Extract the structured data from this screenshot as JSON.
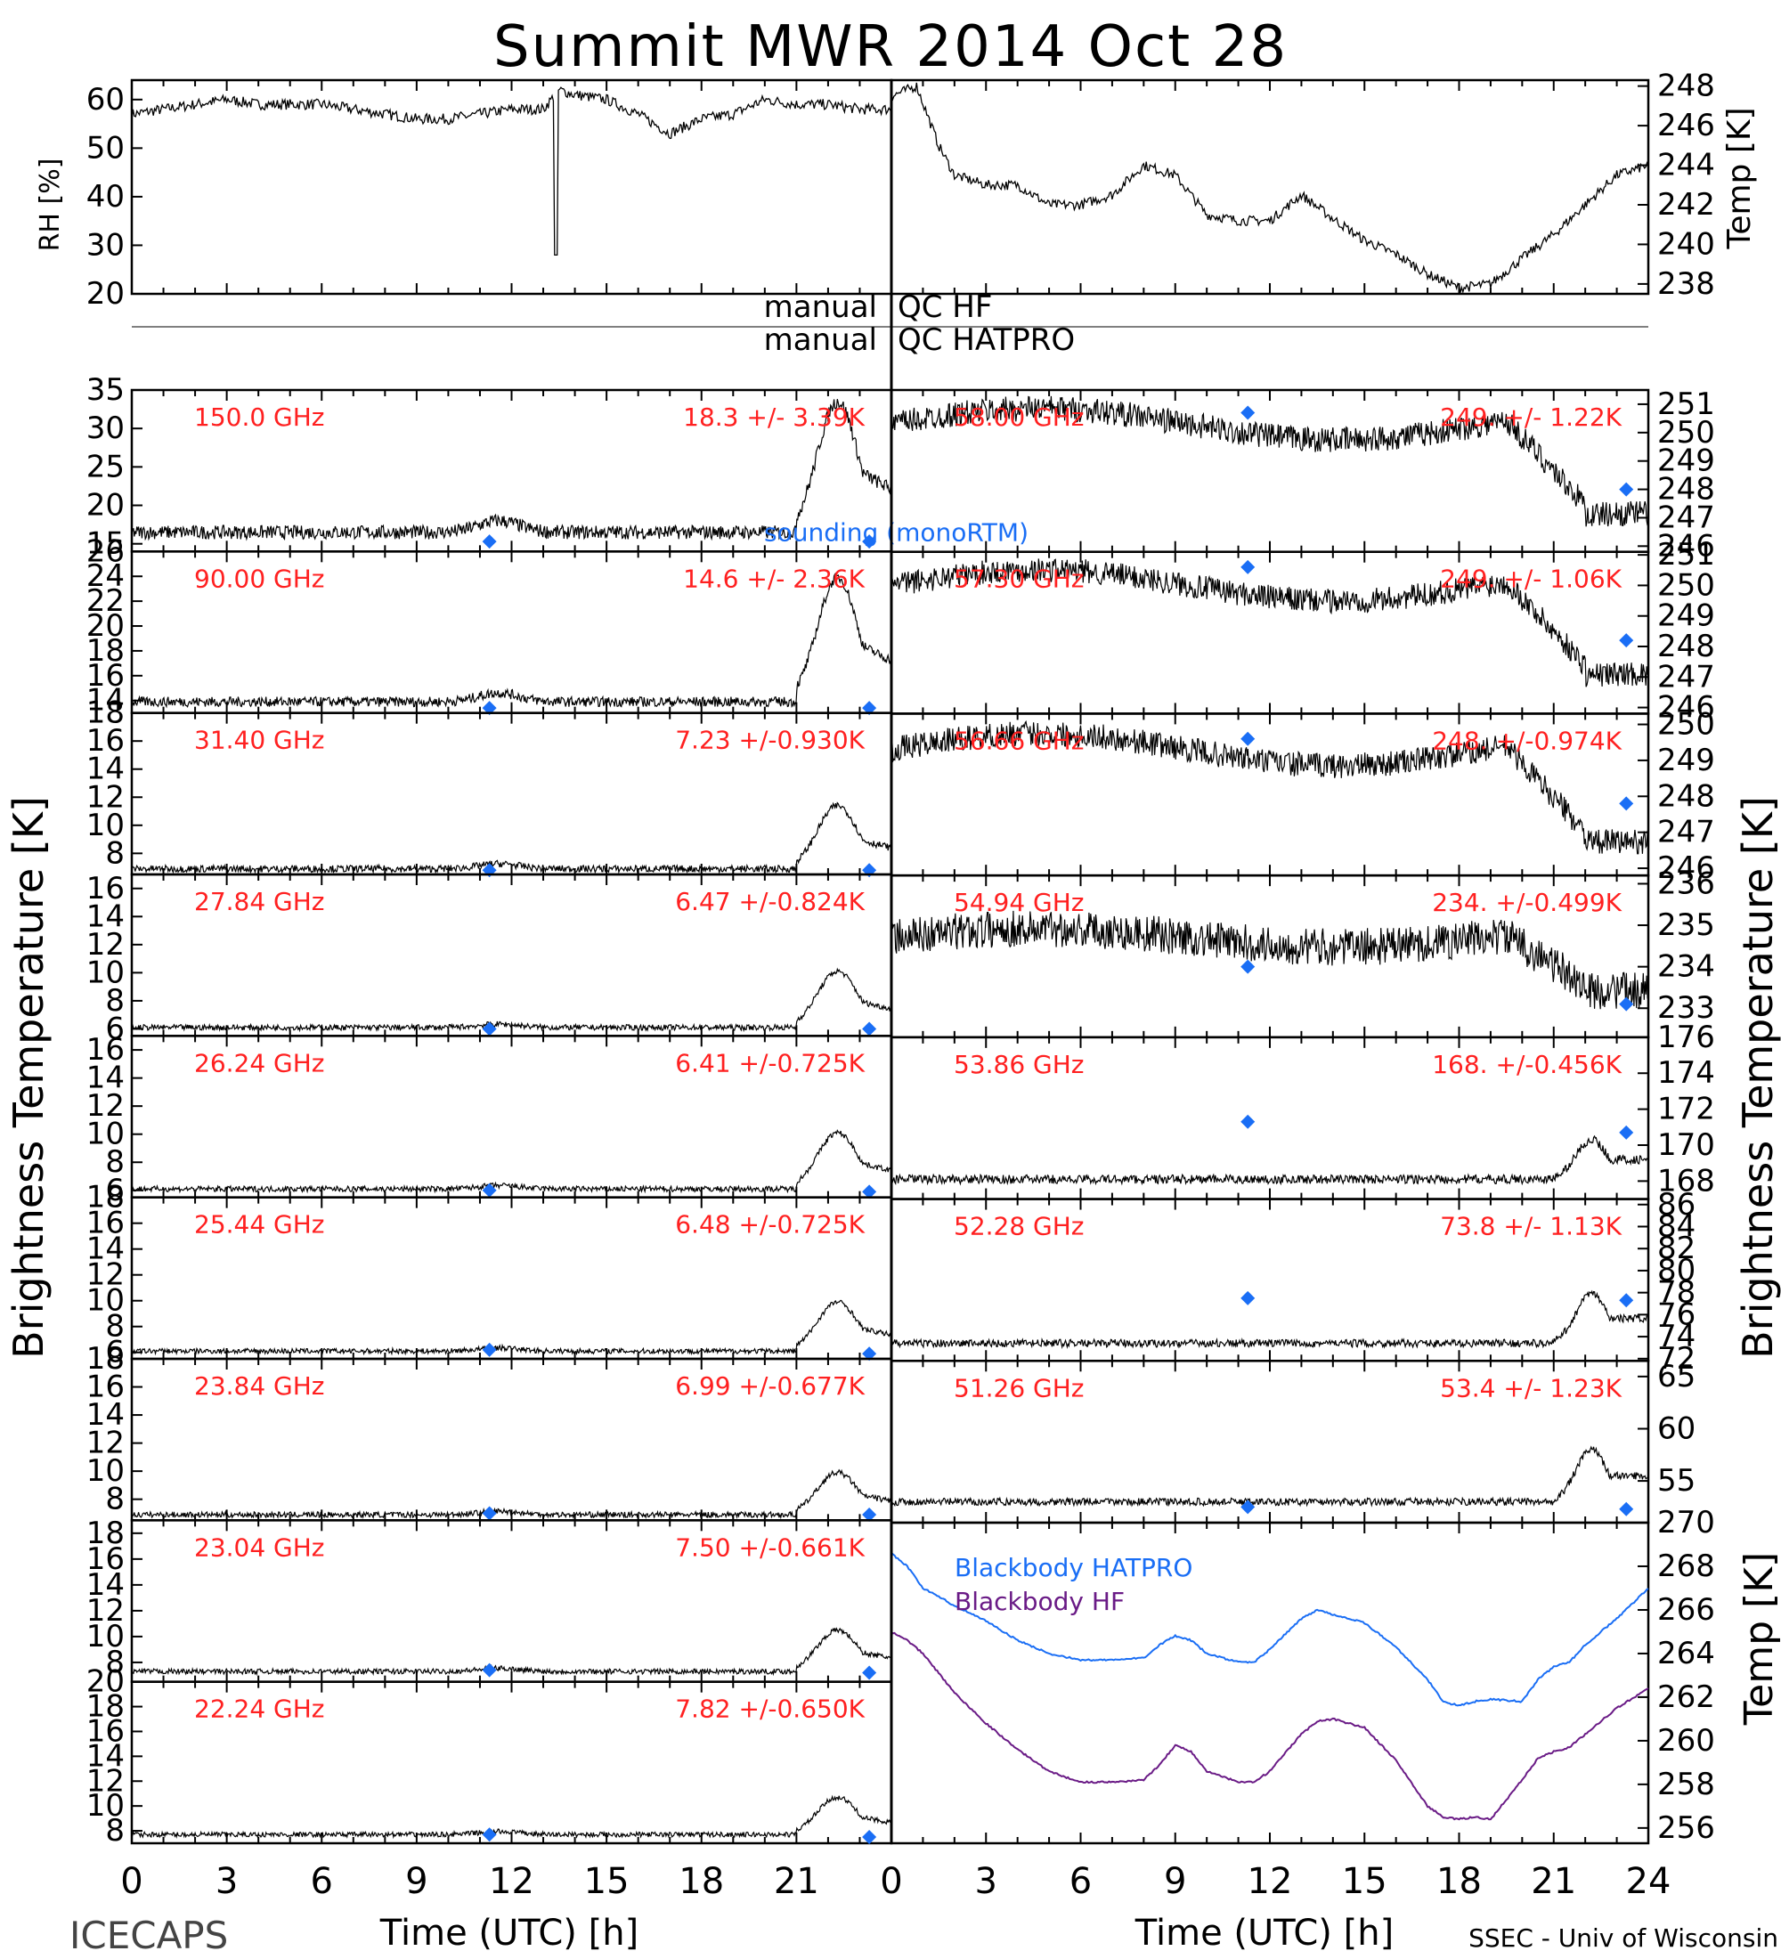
{
  "title": "Summit MWR 2014 Oct 28",
  "footer": {
    "left": "ICECAPS",
    "right": "SSEC - Univ of Wisconsin"
  },
  "colors": {
    "channel_label": "#ff2020",
    "sounding": "#1a6ef5",
    "hatpro": "#1a6ef5",
    "hf": "#6a1b86",
    "data": "#000000"
  },
  "axes": {
    "time_label": "Time (UTC) [h]",
    "time_ticks": [
      "0",
      "3",
      "6",
      "9",
      "12",
      "15",
      "18",
      "21",
      "0",
      "3",
      "6",
      "9",
      "12",
      "15",
      "18",
      "21",
      "24"
    ],
    "bt_label_left": "Brightness Temperature [K]",
    "bt_label_right": "Brightness Temperature [K]",
    "rh_label": "RH [%]",
    "temp_label_top": "Temp [K]",
    "temp_label_bottom": "Temp [K]"
  },
  "qc": {
    "hf": {
      "left": "manual",
      "right": "QC HF"
    },
    "hatpro": {
      "left": "manual",
      "right": "QC HATPRO"
    }
  },
  "legend": {
    "sounding": "sounding (monoRTM)",
    "hatpro": "Blackbody HATPRO",
    "hf": "Blackbody HF"
  },
  "chart_data": {
    "type": "line",
    "met": {
      "rh": {
        "x_range": [
          0,
          24
        ],
        "ylim": [
          20,
          64
        ],
        "ticks": [
          20,
          30,
          40,
          50,
          60
        ],
        "x": [
          0,
          1,
          2,
          3,
          4,
          5,
          6,
          7,
          8,
          9,
          10,
          11,
          12,
          13,
          13.5,
          14,
          15,
          16,
          17,
          18,
          19,
          20,
          21,
          22,
          23,
          24
        ],
        "y": [
          57,
          58,
          59,
          60,
          59,
          59,
          59,
          58,
          57,
          56,
          56,
          57,
          58,
          58,
          62,
          61,
          60,
          57,
          53,
          56,
          57,
          60,
          59,
          59,
          58,
          58
        ]
      },
      "temp": {
        "x_range": [
          0,
          24
        ],
        "ylim": [
          237.5,
          248.3
        ],
        "ticks": [
          238,
          240,
          242,
          244,
          246,
          248
        ],
        "x": [
          0,
          0.8,
          1.5,
          2,
          3,
          4,
          5,
          6,
          7,
          8,
          9,
          10,
          11,
          12,
          13,
          14,
          15,
          16,
          17,
          18,
          19,
          20,
          21,
          22,
          23,
          24
        ],
        "y": [
          247.5,
          248,
          245,
          243.5,
          243,
          243,
          242,
          242,
          242.5,
          244,
          243.5,
          241.5,
          241.2,
          241.2,
          242.5,
          241.3,
          240.2,
          239.5,
          238.5,
          237.8,
          238,
          239.3,
          240.5,
          242,
          243.5,
          244
        ]
      }
    },
    "channels_left": [
      {
        "freq": "150.0 GHz",
        "stat": "18.3 +/- 3.39K",
        "ylim": [
          14,
          35
        ],
        "ticks": [
          15,
          20,
          25,
          30,
          35
        ],
        "sounding": [
          [
            11.3,
            15.3
          ],
          [
            23.3,
            15.3
          ]
        ],
        "base": 16.5,
        "bump": 2.5,
        "peak": 17,
        "noise": 0.9
      },
      {
        "freq": "90.00 GHz",
        "stat": "14.6 +/- 2.36K",
        "ylim": [
          13,
          26
        ],
        "ticks": [
          14,
          16,
          18,
          20,
          22,
          24,
          26
        ],
        "sounding": [
          [
            11.3,
            13.4
          ],
          [
            23.3,
            13.4
          ]
        ],
        "base": 13.9,
        "bump": 1.2,
        "peak": 10,
        "noise": 0.4
      },
      {
        "freq": "31.40 GHz",
        "stat": "7.23 +/-0.930K",
        "ylim": [
          6.5,
          18
        ],
        "ticks": [
          8,
          10,
          12,
          14,
          16,
          18
        ],
        "sounding": [
          [
            11.3,
            6.8
          ],
          [
            23.3,
            6.8
          ]
        ],
        "base": 6.9,
        "bump": 0.6,
        "peak": 4.5,
        "noise": 0.25
      },
      {
        "freq": "27.84 GHz",
        "stat": "6.47 +/-0.824K",
        "ylim": [
          5.5,
          17
        ],
        "ticks": [
          6,
          8,
          10,
          12,
          14,
          16
        ],
        "sounding": [
          [
            11.3,
            6
          ],
          [
            23.3,
            6
          ]
        ],
        "base": 6.1,
        "bump": 0.4,
        "peak": 4,
        "noise": 0.2
      },
      {
        "freq": "26.24 GHz",
        "stat": "6.41 +/-0.725K",
        "ylim": [
          5.5,
          17
        ],
        "ticks": [
          6,
          8,
          10,
          12,
          14,
          16
        ],
        "sounding": [
          [
            11.3,
            6
          ],
          [
            23.3,
            5.9
          ]
        ],
        "base": 6.1,
        "bump": 0.4,
        "peak": 4,
        "noise": 0.2
      },
      {
        "freq": "25.44 GHz",
        "stat": "6.48 +/-0.725K",
        "ylim": [
          5.5,
          18
        ],
        "ticks": [
          6,
          8,
          10,
          12,
          14,
          16,
          18
        ],
        "sounding": [
          [
            11.3,
            6.2
          ],
          [
            23.3,
            5.9
          ]
        ],
        "base": 6.1,
        "bump": 0.4,
        "peak": 3.8,
        "noise": 0.2
      },
      {
        "freq": "23.84 GHz",
        "stat": "6.99 +/-0.677K",
        "ylim": [
          6.5,
          18
        ],
        "ticks": [
          8,
          10,
          12,
          14,
          16,
          18
        ],
        "sounding": [
          [
            11.3,
            7
          ],
          [
            23.3,
            6.9
          ]
        ],
        "base": 6.9,
        "bump": 0.4,
        "peak": 3,
        "noise": 0.2
      },
      {
        "freq": "23.04 GHz",
        "stat": "7.50 +/-0.661K",
        "ylim": [
          6.5,
          19
        ],
        "ticks": [
          8,
          10,
          12,
          14,
          16,
          18
        ],
        "sounding": [
          [
            11.3,
            7.4
          ],
          [
            23.3,
            7.2
          ]
        ],
        "base": 7.3,
        "bump": 0.4,
        "peak": 3.2,
        "noise": 0.2
      },
      {
        "freq": "22.24 GHz",
        "stat": "7.82 +/-0.650K",
        "ylim": [
          7,
          20
        ],
        "ticks": [
          8,
          10,
          12,
          14,
          16,
          18,
          20
        ],
        "sounding": [
          [
            11.3,
            7.7
          ],
          [
            23.3,
            7.5
          ]
        ],
        "base": 7.7,
        "bump": 0.4,
        "peak": 3,
        "noise": 0.2
      }
    ],
    "channels_right": [
      {
        "freq": "58.00 GHz",
        "stat": "249. +/- 1.22K",
        "ylim": [
          245.8,
          251.5
        ],
        "ticks": [
          246,
          247,
          248,
          249,
          250,
          251
        ],
        "sounding": [
          [
            11.3,
            250.7
          ],
          [
            23.3,
            248.0
          ]
        ],
        "base": 250.3,
        "drop": 3.7,
        "noise": 0.45
      },
      {
        "freq": "57.30 GHz",
        "stat": "249. +/- 1.06K",
        "ylim": [
          245.8,
          251.1
        ],
        "ticks": [
          246,
          247,
          248,
          249,
          250,
          251
        ],
        "sounding": [
          [
            11.3,
            250.6
          ],
          [
            23.3,
            248.2
          ]
        ],
        "base": 250.0,
        "drop": 3.4,
        "noise": 0.4
      },
      {
        "freq": "56.66 GHz",
        "stat": "248. +/-0.974K",
        "ylim": [
          245.8,
          250.3
        ],
        "ticks": [
          246,
          247,
          248,
          249,
          250
        ],
        "sounding": [
          [
            11.3,
            249.6
          ],
          [
            23.3,
            247.8
          ]
        ],
        "base": 249.3,
        "drop": 3.0,
        "noise": 0.35
      },
      {
        "freq": "54.94 GHz",
        "stat": "234. +/-0.499K",
        "ylim": [
          232.3,
          236.2
        ],
        "ticks": [
          233,
          234,
          235,
          236
        ],
        "sounding": [
          [
            11.3,
            234.0
          ],
          [
            23.3,
            233.1
          ]
        ],
        "base": 234.7,
        "drop": 1.5,
        "noise": 0.45
      },
      {
        "freq": "53.86 GHz",
        "stat": "168. +/-0.456K",
        "ylim": [
          167,
          176
        ],
        "ticks": [
          168,
          170,
          172,
          174,
          176
        ],
        "sounding": [
          [
            11.3,
            171.3
          ],
          [
            23.3,
            170.7
          ]
        ],
        "base": 168.1,
        "drop": 0,
        "peak": 2.2,
        "noise": 0.25
      },
      {
        "freq": "52.28 GHz",
        "stat": "73.8 +/- 1.13K",
        "ylim": [
          71.8,
          86.5
        ],
        "ticks": [
          72,
          74,
          76,
          78,
          80,
          82,
          84,
          86
        ],
        "sounding": [
          [
            11.3,
            77.5
          ],
          [
            23.3,
            77.3
          ]
        ],
        "base": 73.4,
        "drop": 0,
        "peak": 4.5,
        "noise": 0.35
      },
      {
        "freq": "51.26 GHz",
        "stat": "53.4 +/- 1.23K",
        "ylim": [
          51,
          66.5
        ],
        "ticks": [
          55,
          60,
          65
        ],
        "sounding": [
          [
            11.3,
            52.5
          ],
          [
            23.3,
            52.3
          ]
        ],
        "base": 53.0,
        "drop": 0,
        "peak": 5,
        "noise": 0.35
      }
    ],
    "blackbody": {
      "ylim": [
        255.3,
        270
      ],
      "ticks": [
        256,
        258,
        260,
        262,
        264,
        266,
        268,
        270
      ],
      "hatpro": {
        "x": [
          0,
          0.5,
          1,
          2,
          3,
          4,
          5,
          6,
          7,
          8,
          8.5,
          9,
          9.5,
          10,
          11,
          11.5,
          12,
          13,
          13.5,
          14,
          15,
          16,
          17,
          17.5,
          18,
          18.5,
          19,
          20,
          20.5,
          21,
          21.5,
          22,
          23,
          24
        ],
        "y": [
          268.6,
          268,
          267,
          266.2,
          265.5,
          264.6,
          264,
          263.7,
          263.7,
          263.8,
          264.4,
          264.8,
          264.6,
          264,
          263.6,
          263.6,
          264.2,
          265.6,
          266,
          265.8,
          265.4,
          264.3,
          262.8,
          261.8,
          261.6,
          261.8,
          261.9,
          261.8,
          262.8,
          263.4,
          263.6,
          264.4,
          265.6,
          267
        ]
      },
      "hf": {
        "x": [
          0,
          0.5,
          1,
          2,
          3,
          4,
          5,
          6,
          7,
          8,
          8.5,
          9,
          9.5,
          10,
          11,
          11.5,
          12,
          13,
          13.5,
          14,
          15,
          16,
          17,
          17.5,
          18,
          18.5,
          19,
          20,
          20.5,
          21,
          21.5,
          22,
          23,
          24
        ],
        "y": [
          265,
          264.6,
          264,
          262.2,
          260.8,
          259.6,
          258.6,
          258.1,
          258.1,
          258.2,
          258.9,
          259.8,
          259.5,
          258.6,
          258.1,
          258.1,
          258.6,
          260.3,
          260.9,
          261,
          260.6,
          259.1,
          257,
          256.5,
          256.4,
          256.5,
          256.4,
          258.2,
          259.2,
          259.5,
          259.7,
          260.3,
          261.5,
          262.4
        ]
      }
    }
  }
}
